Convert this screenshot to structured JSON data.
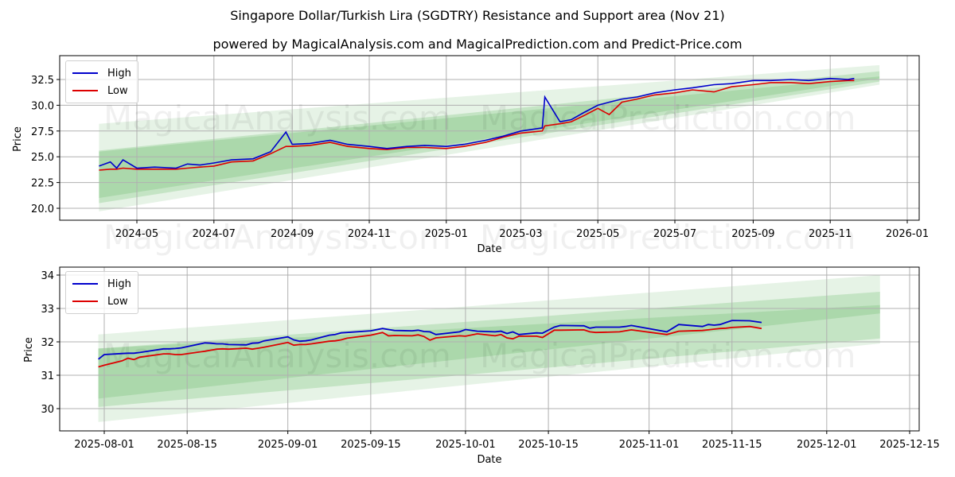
{
  "header": {
    "title": "Singapore Dollar/Turkish Lira (SGDTRY) Resistance and Support area (Nov 21)",
    "subtitle": "powered by MagicalAnalysis.com and MagicalPrediction.com and Predict-Price.com"
  },
  "watermarks": [
    "MagicalAnalysis.com",
    "MagicalPrediction.com"
  ],
  "colors": {
    "high": "#0000cc",
    "low": "#dd0000",
    "band": "#2e9e2e",
    "grid": "#b0b0b0"
  },
  "chart_data": [
    {
      "type": "line",
      "title": "Full history",
      "xlabel": "Date",
      "ylabel": "Price",
      "ylim": [
        19,
        34.7
      ],
      "yticks": [
        "20.0",
        "22.5",
        "25.0",
        "27.5",
        "30.0",
        "32.5"
      ],
      "xticks": [
        "2024-05",
        "2024-07",
        "2024-09",
        "2024-11",
        "2025-01",
        "2025-03",
        "2025-05",
        "2025-07",
        "2025-09",
        "2025-11",
        "2026-01"
      ],
      "grid": true,
      "legend": {
        "position": "upper left",
        "entries": [
          "High",
          "Low"
        ]
      },
      "x": [
        "2024-04-01",
        "2024-04-10",
        "2024-04-15",
        "2024-04-20",
        "2024-05-01",
        "2024-05-15",
        "2024-06-01",
        "2024-06-10",
        "2024-06-20",
        "2024-07-01",
        "2024-07-15",
        "2024-08-01",
        "2024-08-15",
        "2024-08-27",
        "2024-09-01",
        "2024-09-15",
        "2024-10-01",
        "2024-10-15",
        "2024-11-01",
        "2024-11-15",
        "2024-12-01",
        "2024-12-15",
        "2025-01-01",
        "2025-01-15",
        "2025-02-01",
        "2025-02-15",
        "2025-03-01",
        "2025-03-18",
        "2025-03-20",
        "2025-04-01",
        "2025-04-10",
        "2025-04-20",
        "2025-05-01",
        "2025-05-10",
        "2025-05-20",
        "2025-06-01",
        "2025-06-15",
        "2025-07-01",
        "2025-07-15",
        "2025-08-01",
        "2025-08-15",
        "2025-09-01",
        "2025-09-15",
        "2025-10-01",
        "2025-10-15",
        "2025-11-01",
        "2025-11-15",
        "2025-11-20"
      ],
      "series": [
        {
          "name": "High",
          "values": [
            24.1,
            24.5,
            23.9,
            24.7,
            23.9,
            24.0,
            23.9,
            24.3,
            24.2,
            24.4,
            24.7,
            24.8,
            25.5,
            27.4,
            26.2,
            26.3,
            26.6,
            26.2,
            26.0,
            25.8,
            26.0,
            26.1,
            26.0,
            26.2,
            26.6,
            27.0,
            27.5,
            27.8,
            30.8,
            28.4,
            28.6,
            29.3,
            30.0,
            30.3,
            30.6,
            30.8,
            31.2,
            31.5,
            31.7,
            32.0,
            32.1,
            32.4,
            32.4,
            32.5,
            32.4,
            32.6,
            32.5,
            32.6
          ]
        },
        {
          "name": "Low",
          "values": [
            23.7,
            23.8,
            23.8,
            23.9,
            23.8,
            23.8,
            23.8,
            23.9,
            24.0,
            24.1,
            24.5,
            24.6,
            25.3,
            26.0,
            26.0,
            26.1,
            26.4,
            26.0,
            25.8,
            25.7,
            25.9,
            25.9,
            25.8,
            26.0,
            26.4,
            26.9,
            27.3,
            27.5,
            28.0,
            28.2,
            28.4,
            29.0,
            29.7,
            29.1,
            30.3,
            30.6,
            31.0,
            31.2,
            31.5,
            31.3,
            31.8,
            32.0,
            32.2,
            32.2,
            32.1,
            32.3,
            32.4,
            32.4
          ]
        }
      ],
      "bands": [
        {
          "name": "outer",
          "x_start": "2024-04-01",
          "x_end": "2025-12-10",
          "upper": [
            28.2,
            33.9
          ],
          "lower": [
            19.7,
            32.0
          ]
        },
        {
          "name": "middle",
          "x_start": "2024-04-01",
          "x_end": "2025-12-10",
          "upper": [
            25.6,
            33.3
          ],
          "lower": [
            20.5,
            32.3
          ]
        },
        {
          "name": "inner",
          "x_start": "2024-04-01",
          "x_end": "2025-12-10",
          "upper": [
            25.5,
            32.8
          ],
          "lower": [
            21.0,
            32.6
          ]
        }
      ]
    },
    {
      "type": "line",
      "title": "Recent",
      "xlabel": "Date",
      "ylabel": "Price",
      "ylim": [
        29.35,
        34.3
      ],
      "yticks": [
        "30",
        "31",
        "32",
        "33",
        "34"
      ],
      "xticks": [
        "2025-08-01",
        "2025-08-15",
        "2025-09-01",
        "2025-09-15",
        "2025-10-01",
        "2025-10-15",
        "2025-11-01",
        "2025-11-15",
        "2025-12-01",
        "2025-12-15"
      ],
      "grid": true,
      "legend": {
        "position": "upper left",
        "entries": [
          "High",
          "Low"
        ]
      },
      "x": [
        "2025-07-31",
        "2025-08-01",
        "2025-08-04",
        "2025-08-05",
        "2025-08-06",
        "2025-08-07",
        "2025-08-11",
        "2025-08-12",
        "2025-08-13",
        "2025-08-14",
        "2025-08-18",
        "2025-08-19",
        "2025-08-20",
        "2025-08-21",
        "2025-08-22",
        "2025-08-25",
        "2025-08-26",
        "2025-08-27",
        "2025-08-28",
        "2025-09-01",
        "2025-09-02",
        "2025-09-03",
        "2025-09-04",
        "2025-09-05",
        "2025-09-08",
        "2025-09-09",
        "2025-09-10",
        "2025-09-11",
        "2025-09-15",
        "2025-09-17",
        "2025-09-18",
        "2025-09-19",
        "2025-09-22",
        "2025-09-23",
        "2025-09-24",
        "2025-09-25",
        "2025-09-26",
        "2025-09-30",
        "2025-10-01",
        "2025-10-03",
        "2025-10-06",
        "2025-10-07",
        "2025-10-08",
        "2025-10-09",
        "2025-10-10",
        "2025-10-13",
        "2025-10-14",
        "2025-10-16",
        "2025-10-17",
        "2025-10-21",
        "2025-10-22",
        "2025-10-23",
        "2025-10-27",
        "2025-10-28",
        "2025-10-29",
        "2025-11-04",
        "2025-11-06",
        "2025-11-10",
        "2025-11-11",
        "2025-11-12",
        "2025-11-13",
        "2025-11-14",
        "2025-11-15",
        "2025-11-18",
        "2025-11-20"
      ],
      "series": [
        {
          "name": "High",
          "values": [
            31.48,
            31.62,
            31.65,
            31.66,
            31.66,
            31.68,
            31.79,
            31.79,
            31.8,
            31.82,
            31.97,
            31.96,
            31.94,
            31.94,
            31.92,
            31.91,
            31.96,
            31.97,
            32.03,
            32.15,
            32.06,
            32.02,
            32.03,
            32.06,
            32.2,
            32.22,
            32.27,
            32.28,
            32.33,
            32.4,
            32.37,
            32.34,
            32.33,
            32.35,
            32.31,
            32.3,
            32.22,
            32.3,
            32.37,
            32.32,
            32.3,
            32.32,
            32.25,
            32.3,
            32.22,
            32.27,
            32.26,
            32.44,
            32.49,
            32.48,
            32.41,
            32.44,
            32.44,
            32.46,
            32.49,
            32.3,
            32.52,
            32.46,
            32.52,
            32.5,
            32.52,
            32.58,
            32.64,
            32.63,
            32.58
          ]
        },
        {
          "name": "Low",
          "values": [
            31.25,
            31.3,
            31.43,
            31.51,
            31.47,
            31.54,
            31.64,
            31.64,
            31.62,
            31.62,
            31.72,
            31.75,
            31.78,
            31.79,
            31.78,
            31.81,
            31.78,
            31.81,
            31.84,
            31.98,
            31.9,
            31.92,
            31.92,
            31.94,
            32.02,
            32.03,
            32.06,
            32.11,
            32.2,
            32.28,
            32.18,
            32.19,
            32.18,
            32.21,
            32.16,
            32.05,
            32.12,
            32.18,
            32.17,
            32.24,
            32.18,
            32.22,
            32.12,
            32.09,
            32.17,
            32.17,
            32.13,
            32.35,
            32.35,
            32.36,
            32.3,
            32.28,
            32.3,
            32.33,
            32.36,
            32.22,
            32.32,
            32.34,
            32.36,
            32.38,
            32.4,
            32.41,
            32.43,
            32.46,
            32.4
          ]
        }
      ],
      "bands": [
        {
          "name": "outer",
          "x_start": "2025-07-31",
          "x_end": "2025-12-10",
          "upper": [
            32.22,
            34.0
          ],
          "lower": [
            29.6,
            31.95
          ]
        },
        {
          "name": "middle",
          "x_start": "2025-07-31",
          "x_end": "2025-12-10",
          "upper": [
            31.8,
            33.5
          ],
          "lower": [
            30.05,
            32.1
          ]
        },
        {
          "name": "inner",
          "x_start": "2025-07-31",
          "x_end": "2025-12-10",
          "upper": [
            31.8,
            33.1
          ],
          "lower": [
            30.3,
            32.85
          ]
        }
      ]
    }
  ]
}
